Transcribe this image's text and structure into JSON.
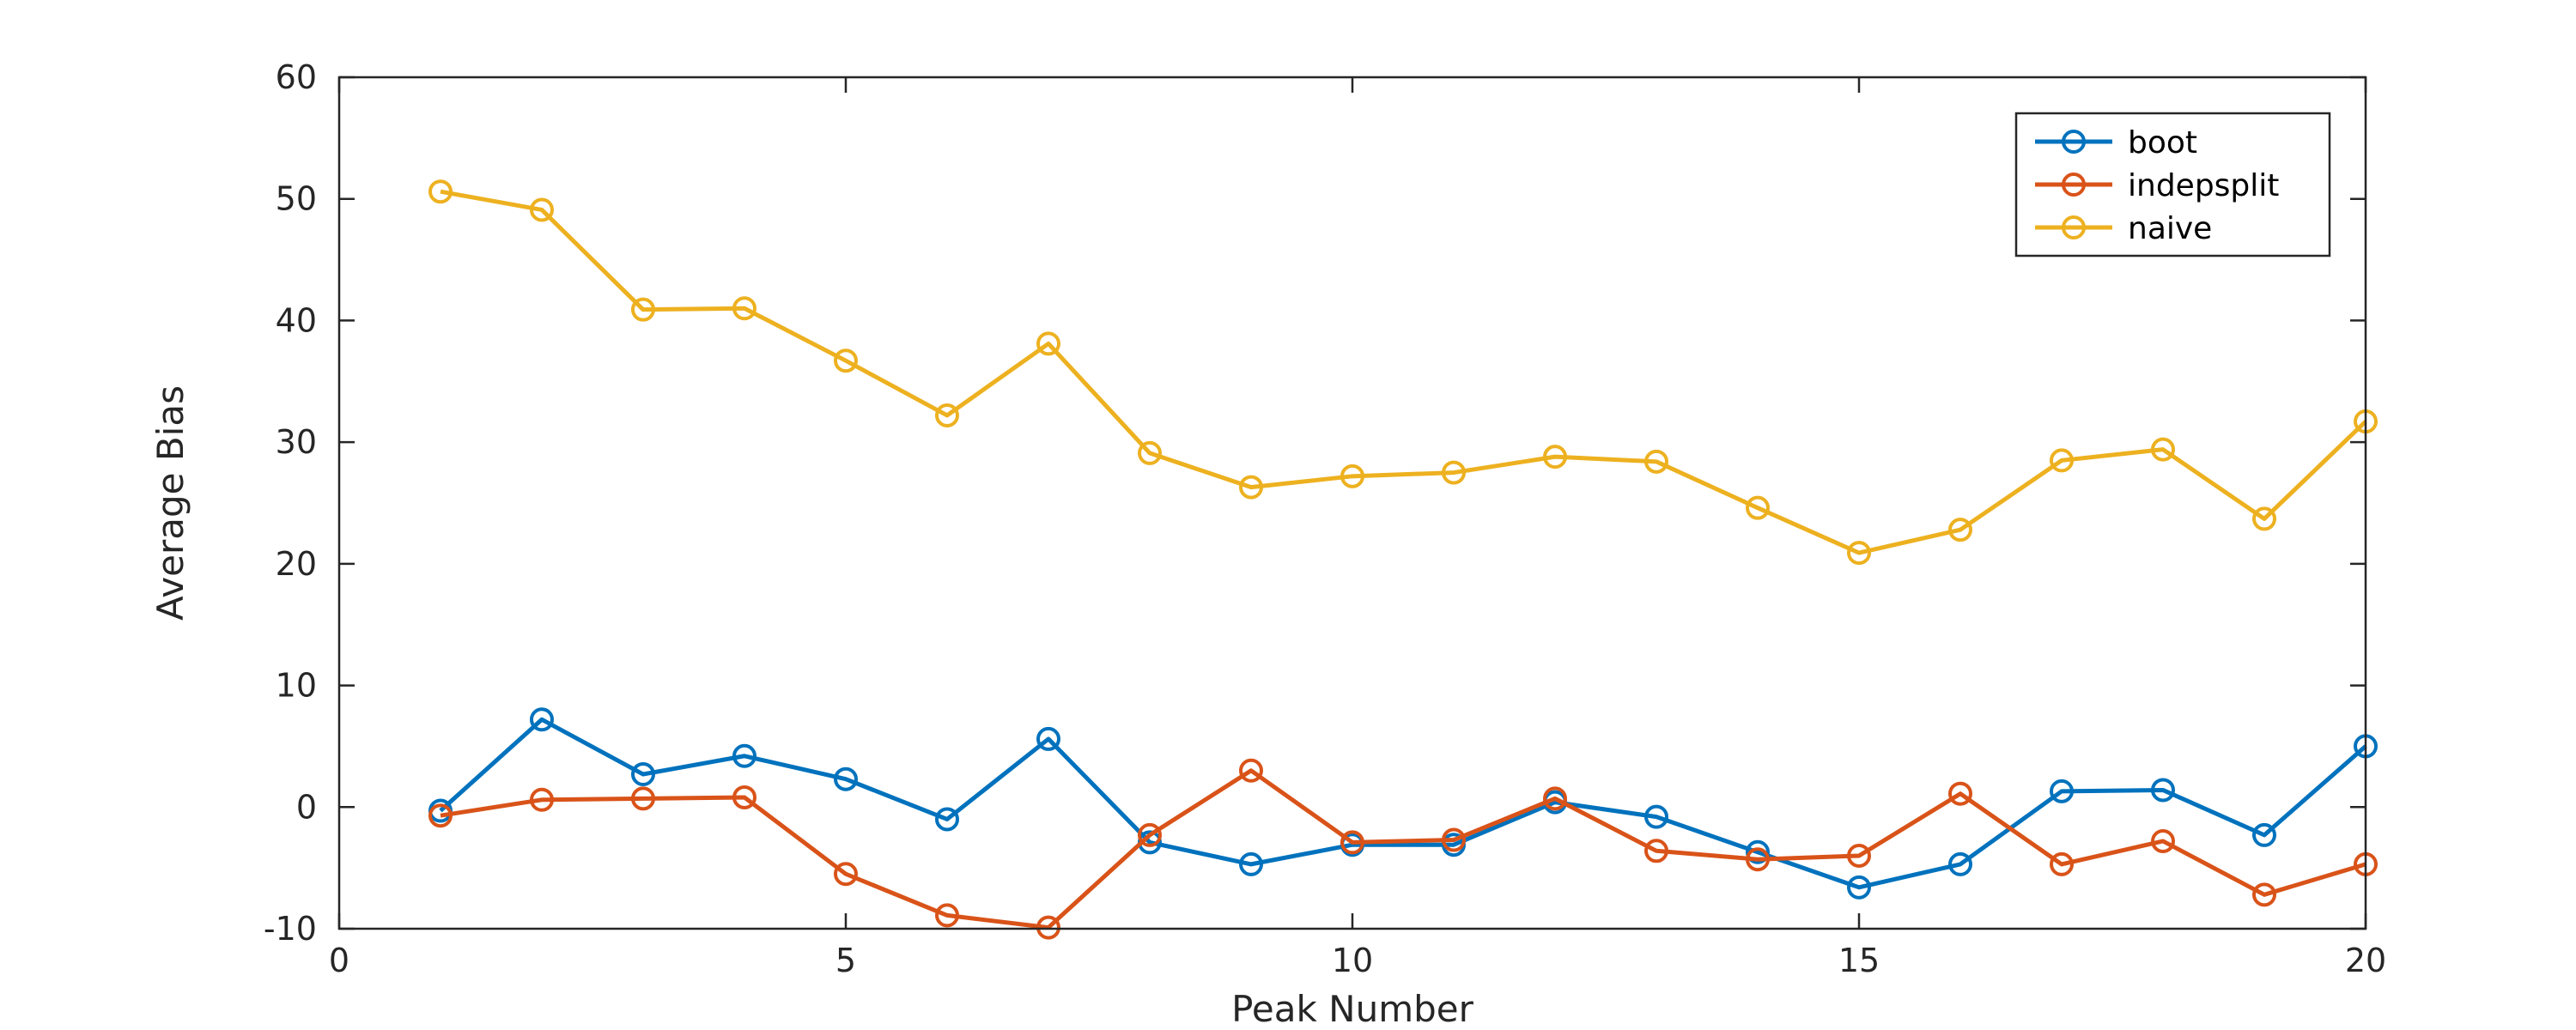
{
  "chart_data": {
    "type": "line",
    "title": "",
    "xlabel": "Peak Number",
    "ylabel": "Average Bias",
    "xlim": [
      0,
      20
    ],
    "ylim": [
      -10,
      60
    ],
    "xticks": [
      0,
      5,
      10,
      15,
      20
    ],
    "yticks": [
      -10,
      0,
      10,
      20,
      30,
      40,
      50,
      60
    ],
    "grid": false,
    "legend_position": "top-right",
    "x": [
      1,
      2,
      3,
      4,
      5,
      6,
      7,
      8,
      9,
      10,
      11,
      12,
      13,
      14,
      15,
      16,
      17,
      18,
      19,
      20
    ],
    "series": [
      {
        "name": "boot",
        "color": "#0072BD",
        "marker": "circle",
        "values": [
          -0.3,
          7.2,
          2.7,
          4.2,
          2.3,
          -1.0,
          5.6,
          -2.9,
          -4.7,
          -3.1,
          -3.1,
          0.4,
          -0.8,
          -3.7,
          -6.6,
          -4.7,
          1.3,
          1.4,
          -2.3,
          5.0
        ]
      },
      {
        "name": "indepsplit",
        "color": "#D95319",
        "marker": "circle",
        "values": [
          -0.7,
          0.6,
          0.7,
          0.8,
          -5.5,
          -8.9,
          -9.9,
          -2.3,
          3.0,
          -2.9,
          -2.7,
          0.7,
          -3.6,
          -4.3,
          -4.0,
          1.1,
          -4.7,
          -2.8,
          -7.2,
          -4.7
        ]
      },
      {
        "name": "naive",
        "color": "#EDB120",
        "marker": "circle",
        "values": [
          50.6,
          49.1,
          40.9,
          41.0,
          36.7,
          32.2,
          38.1,
          29.1,
          26.3,
          27.2,
          27.5,
          28.8,
          28.4,
          24.6,
          20.9,
          22.8,
          28.5,
          29.4,
          23.7,
          31.7
        ]
      }
    ]
  }
}
